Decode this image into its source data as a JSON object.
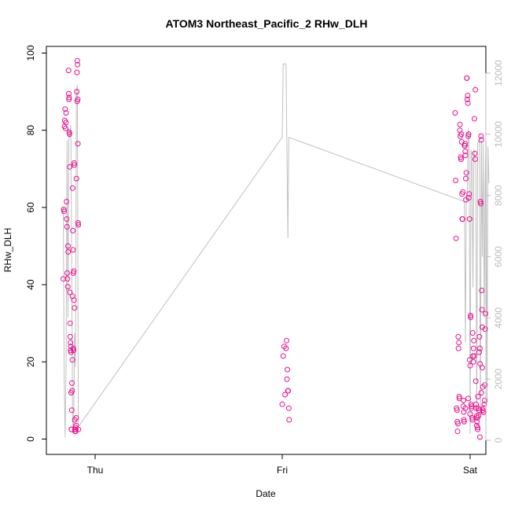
{
  "chart_data": {
    "type": "scatter",
    "title": "ATOM3 Northeast_Pacific_2 RHw_DLH",
    "xlabel": "Date",
    "ylabel": "RHw_DLH",
    "ylim": [
      0,
      100
    ],
    "yticks": [
      0,
      20,
      40,
      60,
      80,
      100
    ],
    "y2lim": [
      0,
      12000
    ],
    "y2ticks": [
      0,
      2000,
      4000,
      6000,
      8000,
      10000,
      12000
    ],
    "xlim": [
      -0.035,
      2.12
    ],
    "xticks": [
      {
        "label": "Thu",
        "value": 0
      },
      {
        "label": "Fri",
        "value": 1
      },
      {
        "label": "Sat",
        "value": 2
      }
    ],
    "colors": {
      "points": "#e8118f",
      "altitude_line": "#c0c0c0",
      "right_axis": "#bdbdbd"
    },
    "series": [
      {
        "points": [
          [
            -0.17,
            41.5
          ],
          [
            -0.168,
            59.5
          ],
          [
            -0.166,
            59.0
          ],
          [
            -0.164,
            81.0
          ],
          [
            -0.162,
            82.5
          ],
          [
            -0.16,
            85.5
          ],
          [
            -0.158,
            80.5
          ],
          [
            -0.156,
            82.0
          ],
          [
            -0.155,
            84.5
          ],
          [
            -0.153,
            61.5
          ],
          [
            -0.152,
            57.0
          ],
          [
            -0.15,
            55.0
          ],
          [
            -0.149,
            43.0
          ],
          [
            -0.148,
            41.5
          ],
          [
            -0.146,
            39.5
          ],
          [
            -0.145,
            50.0
          ],
          [
            -0.144,
            48.5
          ],
          [
            -0.142,
            95.5
          ],
          [
            -0.141,
            89.5
          ],
          [
            -0.14,
            88.0
          ],
          [
            -0.139,
            88.5
          ],
          [
            -0.138,
            79.5
          ],
          [
            -0.137,
            79.0
          ],
          [
            -0.136,
            70.5
          ],
          [
            -0.135,
            38.0
          ],
          [
            -0.134,
            30.0
          ],
          [
            -0.133,
            26.5
          ],
          [
            -0.132,
            25.0
          ],
          [
            -0.131,
            23.0
          ],
          [
            -0.13,
            24.0
          ],
          [
            -0.129,
            22.5
          ],
          [
            -0.128,
            12.0
          ],
          [
            -0.127,
            2.5
          ],
          [
            -0.126,
            2.5
          ],
          [
            -0.125,
            7.5
          ],
          [
            -0.124,
            14.5
          ],
          [
            -0.123,
            12.5
          ],
          [
            -0.122,
            20.5
          ],
          [
            -0.121,
            37.0
          ],
          [
            -0.12,
            65.0
          ],
          [
            -0.119,
            54.0
          ],
          [
            -0.118,
            49.0
          ],
          [
            -0.117,
            43.0
          ],
          [
            -0.116,
            23.5
          ],
          [
            -0.115,
            23.0
          ],
          [
            -0.114,
            43.5
          ],
          [
            -0.113,
            36.0
          ],
          [
            -0.112,
            71.5
          ],
          [
            -0.111,
            71.0
          ],
          [
            -0.11,
            34.0
          ],
          [
            -0.109,
            5.0
          ],
          [
            -0.108,
            2.5
          ],
          [
            -0.107,
            2.0
          ],
          [
            -0.106,
            2.5
          ],
          [
            -0.105,
            3.0
          ],
          [
            -0.104,
            2.0
          ],
          [
            -0.103,
            2.5
          ],
          [
            -0.102,
            3.5
          ],
          [
            -0.101,
            5.5
          ],
          [
            -0.1,
            67.5
          ],
          [
            -0.098,
            90.0
          ],
          [
            -0.097,
            95.0
          ],
          [
            -0.096,
            87.5
          ],
          [
            -0.095,
            98.0
          ],
          [
            -0.094,
            97.0
          ],
          [
            -0.093,
            88.0
          ],
          [
            -0.092,
            76.5
          ],
          [
            -0.091,
            56.0
          ],
          [
            -0.09,
            55.5
          ],
          [
            -0.089,
            2.5
          ],
          [
            1.0,
            9.0
          ],
          [
            1.005,
            21.5
          ],
          [
            1.01,
            24.0
          ],
          [
            1.015,
            11.5
          ],
          [
            1.02,
            23.5
          ],
          [
            1.023,
            25.5
          ],
          [
            1.025,
            15.5
          ],
          [
            1.027,
            18.0
          ],
          [
            1.03,
            12.5
          ],
          [
            1.032,
            12.5
          ],
          [
            1.035,
            8.0
          ],
          [
            1.037,
            5.0
          ],
          [
            1.92,
            84.5
          ],
          [
            1.923,
            67.0
          ],
          [
            1.925,
            52.0
          ],
          [
            1.928,
            8.0
          ],
          [
            1.93,
            7.5
          ],
          [
            1.932,
            4.5
          ],
          [
            1.933,
            2.0
          ],
          [
            1.935,
            4.0
          ],
          [
            1.937,
            26.5
          ],
          [
            1.938,
            23.5
          ],
          [
            1.94,
            25.0
          ],
          [
            1.942,
            11.0
          ],
          [
            1.943,
            10.5
          ],
          [
            1.945,
            80.0
          ],
          [
            1.946,
            81.5
          ],
          [
            1.948,
            78.5
          ],
          [
            1.95,
            73.0
          ],
          [
            1.952,
            72.5
          ],
          [
            1.953,
            79.0
          ],
          [
            1.955,
            77.0
          ],
          [
            1.957,
            63.5
          ],
          [
            1.958,
            57.0
          ],
          [
            1.96,
            57.0
          ],
          [
            1.962,
            64.0
          ],
          [
            1.963,
            8.5
          ],
          [
            1.965,
            10.0
          ],
          [
            1.966,
            7.0
          ],
          [
            1.967,
            5.0
          ],
          [
            1.968,
            4.5
          ],
          [
            1.97,
            76.0
          ],
          [
            1.972,
            76.0
          ],
          [
            1.973,
            76.5
          ],
          [
            1.974,
            74.5
          ],
          [
            1.975,
            73.5
          ],
          [
            1.977,
            67.5
          ],
          [
            1.978,
            62.0
          ],
          [
            1.98,
            69.0
          ],
          [
            1.982,
            93.5
          ],
          [
            1.983,
            93.5
          ],
          [
            1.985,
            88.0
          ],
          [
            1.987,
            89.0
          ],
          [
            1.988,
            87.0
          ],
          [
            1.99,
            78.5
          ],
          [
            1.992,
            79.0
          ],
          [
            1.993,
            62.5
          ],
          [
            1.995,
            63.5
          ],
          [
            1.997,
            57.0
          ],
          [
            1.998,
            20.5
          ],
          [
            2.0,
            19.0
          ],
          [
            2.002,
            32.0
          ],
          [
            2.003,
            31.5
          ],
          [
            2.005,
            9.0
          ],
          [
            2.007,
            8.0
          ],
          [
            2.008,
            8.5
          ],
          [
            2.01,
            5.5
          ],
          [
            2.012,
            5.0
          ],
          [
            2.013,
            27.5
          ],
          [
            2.015,
            21.5
          ],
          [
            2.017,
            20.0
          ],
          [
            2.018,
            23.5
          ],
          [
            2.02,
            25.5
          ],
          [
            2.022,
            21.5
          ],
          [
            2.023,
            83.0
          ],
          [
            2.025,
            74.0
          ],
          [
            2.027,
            72.5
          ],
          [
            2.028,
            90.5
          ],
          [
            2.03,
            15.0
          ],
          [
            2.032,
            9.0
          ],
          [
            2.033,
            8.0
          ],
          [
            2.035,
            3.5
          ],
          [
            2.037,
            4.5
          ],
          [
            2.038,
            5.5
          ],
          [
            2.04,
            2.5
          ],
          [
            2.042,
            11.0
          ],
          [
            2.043,
            8.0
          ],
          [
            2.045,
            6.0
          ],
          [
            2.047,
            7.5
          ],
          [
            2.048,
            22.5
          ],
          [
            2.05,
            26.5
          ],
          [
            2.052,
            23.5
          ],
          [
            2.053,
            19.5
          ],
          [
            2.055,
            61.5
          ],
          [
            2.057,
            61.0
          ],
          [
            2.058,
            78.5
          ],
          [
            2.06,
            77.5
          ],
          [
            2.062,
            38.5
          ],
          [
            2.063,
            33.5
          ],
          [
            2.065,
            29.0
          ],
          [
            2.067,
            13.5
          ],
          [
            2.068,
            7.5
          ],
          [
            2.07,
            7.0
          ],
          [
            2.072,
            8.0
          ],
          [
            2.073,
            7.0
          ],
          [
            2.075,
            9.0
          ],
          [
            2.077,
            10.0
          ],
          [
            2.078,
            14.0
          ],
          [
            2.08,
            28.5
          ],
          [
            2.082,
            32.5
          ],
          [
            1.975,
            8.0
          ],
          [
            1.99,
            10.5
          ],
          [
            2.0,
            6.5
          ],
          [
            2.035,
            6.0
          ],
          [
            2.04,
            3.0
          ],
          [
            2.052,
            0.5
          ],
          [
            2.06,
            12.0
          ],
          [
            2.065,
            18.5
          ]
        ]
      },
      {
        "points": [
          [
            -0.175,
            7400
          ],
          [
            -0.17,
            7600
          ],
          [
            -0.165,
            2000
          ],
          [
            -0.16,
            100
          ],
          [
            -0.155,
            2500
          ],
          [
            -0.15,
            9800
          ],
          [
            -0.145,
            4000
          ],
          [
            -0.14,
            10200
          ],
          [
            -0.135,
            9900
          ],
          [
            -0.13,
            10300
          ],
          [
            -0.125,
            5000
          ],
          [
            -0.12,
            600
          ],
          [
            -0.115,
            300
          ],
          [
            -0.11,
            3500
          ],
          [
            -0.105,
            2400
          ],
          [
            -0.1,
            11400
          ],
          [
            -0.095,
            11600
          ],
          [
            -0.09,
            500
          ],
          [
            -0.085,
            480
          ],
          [
            1.0,
            9900
          ],
          [
            1.005,
            12300
          ],
          [
            1.02,
            12300
          ],
          [
            1.03,
            6600
          ],
          [
            1.035,
            9900
          ],
          [
            1.97,
            7800
          ],
          [
            1.975,
            3200
          ],
          [
            1.98,
            8000
          ],
          [
            1.985,
            8000
          ],
          [
            1.99,
            10200
          ],
          [
            1.995,
            9600
          ],
          [
            2.0,
            200
          ],
          [
            2.005,
            9500
          ],
          [
            2.01,
            9200
          ],
          [
            2.015,
            5000
          ],
          [
            2.02,
            9500
          ],
          [
            2.03,
            9000
          ],
          [
            2.035,
            900
          ],
          [
            2.04,
            9700
          ],
          [
            2.045,
            9800
          ],
          [
            2.05,
            9700
          ],
          [
            2.055,
            800
          ],
          [
            2.06,
            9800
          ],
          [
            2.065,
            6000
          ],
          [
            2.07,
            9700
          ],
          [
            2.075,
            4000
          ],
          [
            2.08,
            8400
          ],
          [
            2.085,
            9800
          ],
          [
            2.09,
            1200
          ],
          [
            2.095,
            9600
          ],
          [
            2.1,
            8400
          ]
        ]
      }
    ]
  }
}
